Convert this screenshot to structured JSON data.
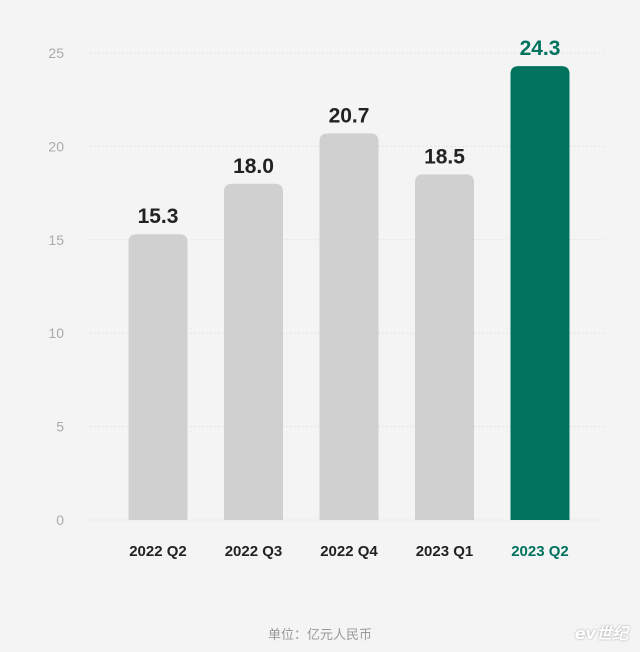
{
  "chart_data": {
    "type": "bar",
    "categories": [
      "2022 Q2",
      "2022 Q3",
      "2022 Q4",
      "2023 Q1",
      "2023 Q2"
    ],
    "values": [
      15.3,
      18.0,
      20.7,
      18.5,
      24.3
    ],
    "data_labels": [
      "15.3",
      "18.0",
      "20.7",
      "18.5",
      "24.3"
    ],
    "highlight_index": 4,
    "title": "",
    "xlabel": "",
    "ylabel": "",
    "ylim": [
      0,
      25
    ],
    "yticks": [
      0,
      5,
      10,
      15,
      20,
      25
    ],
    "grid": true,
    "colors": {
      "bar": "#d0d0d0",
      "highlight": "#00735f",
      "label": "#222222",
      "tick": "#aaaaaa",
      "grid": "#e4e4e4"
    }
  },
  "footer": {
    "unit_note": "单位：亿元人民币",
    "brand_watermark": "ev世纪"
  }
}
